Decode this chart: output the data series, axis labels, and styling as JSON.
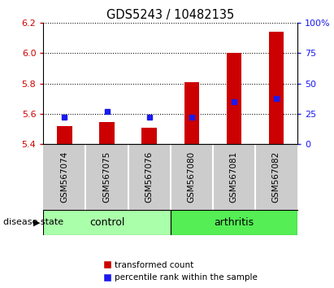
{
  "title": "GDS5243 / 10482135",
  "samples": [
    "GSM567074",
    "GSM567075",
    "GSM567076",
    "GSM567080",
    "GSM567081",
    "GSM567082"
  ],
  "red_values": [
    5.52,
    5.545,
    5.51,
    5.81,
    6.005,
    6.14
  ],
  "blue_pct": [
    22,
    27,
    22,
    22,
    35,
    38
  ],
  "baseline": 5.4,
  "ylim_left": [
    5.4,
    6.2
  ],
  "ylim_right": [
    0,
    100
  ],
  "yticks_left": [
    5.4,
    5.6,
    5.8,
    6.0,
    6.2
  ],
  "yticks_right": [
    0,
    25,
    50,
    75,
    100
  ],
  "ytick_labels_right": [
    "0",
    "25",
    "50",
    "75",
    "100%"
  ],
  "red_color": "#cc0000",
  "blue_color": "#1a1aee",
  "bar_width": 0.35,
  "control_color": "#aaffaa",
  "arthritis_color": "#55ee55",
  "sample_bg_color": "#cccccc",
  "legend_red": "transformed count",
  "legend_blue": "percentile rank within the sample",
  "disease_state_label": "disease state",
  "n_control": 3,
  "n_arthritis": 3
}
